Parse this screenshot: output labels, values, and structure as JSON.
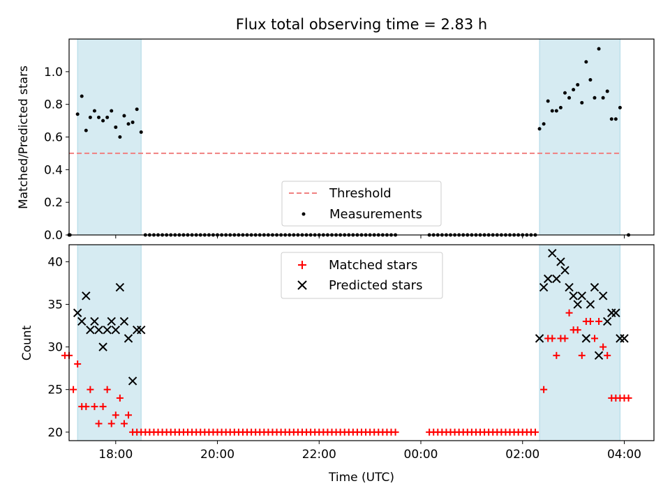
{
  "figure": {
    "title": "Flux total observing time = 2.83 h",
    "xlabel": "Time (UTC)"
  },
  "colors": {
    "shade": "#add8e6",
    "threshold": "#f08080",
    "matched": "#ff0000",
    "predicted": "#000000",
    "measurements": "#000000"
  },
  "chart_data": [
    {
      "type": "scatter",
      "panel": "top",
      "ylabel": "Matched/Predicted stars",
      "xlim": [
        "17:05",
        "04:35"
      ],
      "ylim": [
        0,
        1.2
      ],
      "yticks": [
        "0.0",
        "0.2",
        "0.4",
        "0.6",
        "0.8",
        "1.0"
      ],
      "xticks": [
        "18:00",
        "20:00",
        "22:00",
        "00:00",
        "02:00",
        "04:00"
      ],
      "xtick_labels_shown": false,
      "shaded_spans": [
        [
          "17:15",
          "18:30"
        ],
        [
          "02:20",
          "03:55"
        ]
      ],
      "threshold": {
        "name": "Threshold",
        "y": 0.5,
        "x_range": [
          "17:05",
          "03:55"
        ],
        "style": "dashed"
      },
      "legend": {
        "position": "lower center",
        "entries": [
          "Threshold",
          "Measurements"
        ]
      },
      "series": [
        {
          "name": "Measurements",
          "marker": "dot",
          "x": [
            "17:05",
            "17:06",
            "17:15",
            "17:20",
            "17:25",
            "17:30",
            "17:35",
            "17:40",
            "17:45",
            "17:50",
            "17:55",
            "18:00",
            "18:05",
            "18:10",
            "18:15",
            "18:20",
            "18:25",
            "18:30",
            "18:35",
            "18:40",
            "18:45",
            "18:50",
            "18:55",
            "19:00",
            "19:05",
            "19:10",
            "19:15",
            "19:20",
            "19:25",
            "19:30",
            "19:35",
            "19:40",
            "19:45",
            "19:50",
            "19:55",
            "20:00",
            "20:05",
            "20:10",
            "20:15",
            "20:20",
            "20:25",
            "20:30",
            "20:35",
            "20:40",
            "20:45",
            "20:50",
            "20:55",
            "21:00",
            "21:05",
            "21:10",
            "21:15",
            "21:20",
            "21:25",
            "21:30",
            "21:35",
            "21:40",
            "21:45",
            "21:50",
            "21:55",
            "22:00",
            "22:05",
            "22:10",
            "22:15",
            "22:20",
            "22:25",
            "22:30",
            "22:35",
            "22:40",
            "22:45",
            "22:50",
            "22:55",
            "23:00",
            "23:05",
            "23:10",
            "23:15",
            "23:20",
            "23:25",
            "23:30",
            "00:10",
            "00:15",
            "00:20",
            "00:25",
            "00:30",
            "00:35",
            "00:40",
            "00:45",
            "00:50",
            "00:55",
            "01:00",
            "01:05",
            "01:10",
            "01:15",
            "01:20",
            "01:25",
            "01:30",
            "01:35",
            "01:40",
            "01:45",
            "01:50",
            "01:55",
            "02:00",
            "02:05",
            "02:10",
            "02:15",
            "02:20",
            "02:25",
            "02:30",
            "02:35",
            "02:40",
            "02:45",
            "02:50",
            "02:55",
            "03:00",
            "03:05",
            "03:10",
            "03:15",
            "03:20",
            "03:25",
            "03:30",
            "03:35",
            "03:40",
            "03:45",
            "03:50",
            "03:55",
            "04:05"
          ],
          "y": [
            0,
            0,
            0.74,
            0.85,
            0.64,
            0.72,
            0.76,
            0.72,
            0.7,
            0.72,
            0.76,
            0.66,
            0.6,
            0.73,
            0.68,
            0.69,
            0.77,
            0.63,
            0,
            0,
            0,
            0,
            0,
            0,
            0,
            0,
            0,
            0,
            0,
            0,
            0,
            0,
            0,
            0,
            0,
            0,
            0,
            0,
            0,
            0,
            0,
            0,
            0,
            0,
            0,
            0,
            0,
            0,
            0,
            0,
            0,
            0,
            0,
            0,
            0,
            0,
            0,
            0,
            0,
            0,
            0,
            0,
            0,
            0,
            0,
            0,
            0,
            0,
            0,
            0,
            0,
            0,
            0,
            0,
            0,
            0,
            0,
            0,
            0,
            0,
            0,
            0,
            0,
            0,
            0,
            0,
            0,
            0,
            0,
            0,
            0,
            0,
            0,
            0,
            0,
            0,
            0,
            0,
            0,
            0,
            0,
            0,
            0,
            0,
            0.65,
            0.68,
            0.82,
            0.76,
            0.76,
            0.78,
            0.87,
            0.84,
            0.89,
            0.92,
            0.81,
            1.06,
            0.95,
            0.84,
            1.14,
            0.84,
            0.88,
            0.71,
            0.71,
            0.78,
            0
          ]
        }
      ]
    },
    {
      "type": "scatter",
      "panel": "bottom",
      "ylabel": "Count",
      "xlabel": "Time (UTC)",
      "xlim": [
        "17:05",
        "04:35"
      ],
      "ylim": [
        19,
        42
      ],
      "yticks": [
        "20",
        "25",
        "30",
        "35",
        "40"
      ],
      "xticks": [
        "18:00",
        "20:00",
        "22:00",
        "00:00",
        "02:00",
        "04:00"
      ],
      "shaded_spans": [
        [
          "17:15",
          "18:30"
        ],
        [
          "02:20",
          "03:55"
        ]
      ],
      "legend": {
        "position": "upper center",
        "entries": [
          "Matched stars",
          "Predicted stars"
        ]
      },
      "series": [
        {
          "name": "Matched stars",
          "marker": "plus",
          "x": [
            "17:00",
            "17:05",
            "17:10",
            "17:15",
            "17:20",
            "17:25",
            "17:30",
            "17:35",
            "17:40",
            "17:45",
            "17:50",
            "17:55",
            "18:00",
            "18:05",
            "18:10",
            "18:15",
            "18:20",
            "18:25",
            "18:30",
            "18:35",
            "18:40",
            "18:45",
            "18:50",
            "18:55",
            "19:00",
            "19:05",
            "19:10",
            "19:15",
            "19:20",
            "19:25",
            "19:30",
            "19:35",
            "19:40",
            "19:45",
            "19:50",
            "19:55",
            "20:00",
            "20:05",
            "20:10",
            "20:15",
            "20:20",
            "20:25",
            "20:30",
            "20:35",
            "20:40",
            "20:45",
            "20:50",
            "20:55",
            "21:00",
            "21:05",
            "21:10",
            "21:15",
            "21:20",
            "21:25",
            "21:30",
            "21:35",
            "21:40",
            "21:45",
            "21:50",
            "21:55",
            "22:00",
            "22:05",
            "22:10",
            "22:15",
            "22:20",
            "22:25",
            "22:30",
            "22:35",
            "22:40",
            "22:45",
            "22:50",
            "22:55",
            "23:00",
            "23:05",
            "23:10",
            "23:15",
            "23:20",
            "23:25",
            "23:30",
            "00:10",
            "00:15",
            "00:20",
            "00:25",
            "00:30",
            "00:35",
            "00:40",
            "00:45",
            "00:50",
            "00:55",
            "01:00",
            "01:05",
            "01:10",
            "01:15",
            "01:20",
            "01:25",
            "01:30",
            "01:35",
            "01:40",
            "01:45",
            "01:50",
            "01:55",
            "02:00",
            "02:05",
            "02:10",
            "02:15",
            "02:25",
            "02:30",
            "02:35",
            "02:40",
            "02:45",
            "02:50",
            "02:55",
            "03:00",
            "03:05",
            "03:10",
            "03:15",
            "03:20",
            "03:25",
            "03:30",
            "03:35",
            "03:40",
            "03:45",
            "03:50",
            "03:55",
            "04:00",
            "04:05"
          ],
          "y": [
            29,
            29,
            25,
            28,
            23,
            23,
            25,
            23,
            21,
            23,
            25,
            21,
            22,
            24,
            21,
            22,
            20,
            20,
            20,
            20,
            20,
            20,
            20,
            20,
            20,
            20,
            20,
            20,
            20,
            20,
            20,
            20,
            20,
            20,
            20,
            20,
            20,
            20,
            20,
            20,
            20,
            20,
            20,
            20,
            20,
            20,
            20,
            20,
            20,
            20,
            20,
            20,
            20,
            20,
            20,
            20,
            20,
            20,
            20,
            20,
            20,
            20,
            20,
            20,
            20,
            20,
            20,
            20,
            20,
            20,
            20,
            20,
            20,
            20,
            20,
            20,
            20,
            20,
            20,
            20,
            20,
            20,
            20,
            20,
            20,
            20,
            20,
            20,
            20,
            20,
            20,
            20,
            20,
            20,
            20,
            20,
            20,
            20,
            20,
            20,
            20,
            20,
            20,
            20,
            20,
            25,
            31,
            31,
            29,
            31,
            31,
            34,
            32,
            32,
            29,
            33,
            33,
            31,
            33,
            30,
            29,
            24,
            24,
            24,
            24,
            24
          ]
        },
        {
          "name": "Predicted stars",
          "marker": "x",
          "x": [
            "17:15",
            "17:20",
            "17:25",
            "17:30",
            "17:35",
            "17:40",
            "17:45",
            "17:50",
            "17:55",
            "18:00",
            "18:05",
            "18:10",
            "18:15",
            "18:20",
            "18:25",
            "18:30",
            "02:20",
            "02:25",
            "02:30",
            "02:35",
            "02:40",
            "02:45",
            "02:50",
            "02:55",
            "03:00",
            "03:05",
            "03:10",
            "03:15",
            "03:20",
            "03:25",
            "03:30",
            "03:35",
            "03:40",
            "03:45",
            "03:50",
            "03:55",
            "04:00"
          ],
          "y": [
            34,
            33,
            36,
            32,
            33,
            32,
            30,
            32,
            33,
            32,
            37,
            33,
            31,
            26,
            32,
            32,
            31,
            37,
            38,
            41,
            38,
            40,
            39,
            37,
            36,
            35,
            36,
            31,
            35,
            37,
            29,
            36,
            33,
            34,
            34,
            31,
            31
          ]
        }
      ]
    }
  ]
}
